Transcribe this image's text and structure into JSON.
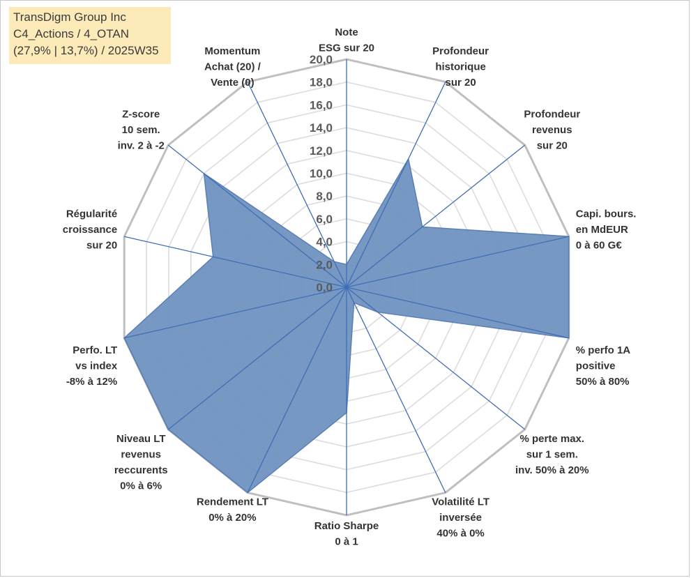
{
  "title_box": {
    "line1": "TransDigm Group Inc",
    "line2": "C4_Actions / 4_OTAN",
    "line3": "(27,9% | 13,7%) / 2025W35"
  },
  "chart_data": {
    "type": "radar",
    "rlim": [
      0,
      20
    ],
    "ticks": [
      "0,0",
      "2,0",
      "4,0",
      "6,0",
      "8,0",
      "10,0",
      "12,0",
      "14,0",
      "16,0",
      "18,0",
      "20,0"
    ],
    "grid": true,
    "colors": {
      "fill": "#6a8fbe",
      "stroke": "#5b7fb5",
      "spoke": "#3f6db5",
      "grid_outer": "#bfbfbf",
      "grid_inner": "#dcdcdc"
    },
    "axes": [
      {
        "label": [
          "Note",
          "ESG sur 20"
        ],
        "value": 2.0
      },
      {
        "label": [
          "Profondeur",
          "historique",
          "sur 20"
        ],
        "value": 12.5
      },
      {
        "label": [
          "Profondeur",
          "revenus",
          "sur 20"
        ],
        "value": 8.5
      },
      {
        "label": [
          "Capi. bours.",
          "en MdEUR",
          "0 à 60 G€"
        ],
        "value": 20.0
      },
      {
        "label": [
          "% perfo 1A",
          "positive",
          "50% à 80%"
        ],
        "value": 20.0
      },
      {
        "label": [
          "% perte max.",
          "sur 1 sem.",
          "inv. 50% à 20%"
        ],
        "value": 3.5
      },
      {
        "label": [
          "Volatilité LT",
          "inversée",
          "40% à 0%"
        ],
        "value": 1.5
      },
      {
        "label": [
          "Ratio Sharpe",
          "0 à 1"
        ],
        "value": 11.0
      },
      {
        "label": [
          "Rendement LT",
          "0% à 20%"
        ],
        "value": 20.0
      },
      {
        "label": [
          "Niveau LT",
          "revenus",
          "reccurents",
          "0% à 6%"
        ],
        "value": 20.0
      },
      {
        "label": [
          "Perfo. LT",
          "vs index",
          "-8% à 12%"
        ],
        "value": 20.0
      },
      {
        "label": [
          "Régularité",
          "croissance",
          "sur 20"
        ],
        "value": 12.0
      },
      {
        "label": [
          "Z-score",
          "10 sem.",
          "inv. 2 à -2"
        ],
        "value": 16.0
      },
      {
        "label": [
          "Momentum",
          "Achat (20) /",
          "Vente (0)"
        ],
        "value": 2.5
      }
    ]
  }
}
